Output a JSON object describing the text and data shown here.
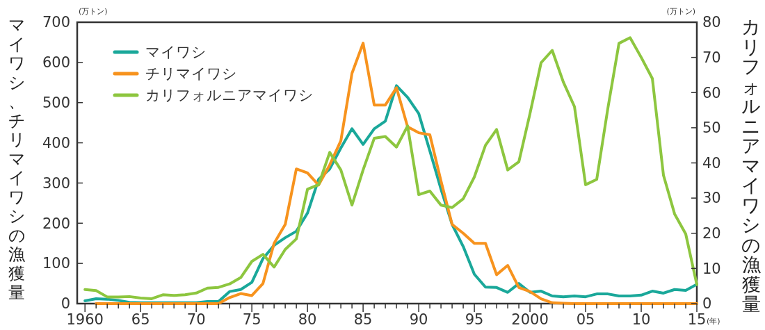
{
  "chart_data": {
    "type": "line",
    "ylabel": "マイワシ、チリマイワシの漁獲量",
    "y2label": "カリフォルニアマイワシの漁獲量",
    "xlabel": "(年)",
    "annotations": [
      "(万トン)",
      "(万トン)"
    ],
    "x": [
      1960,
      1961,
      1962,
      1963,
      1964,
      1965,
      1966,
      1967,
      1968,
      1969,
      1970,
      1971,
      1972,
      1973,
      1974,
      1975,
      1976,
      1977,
      1978,
      1979,
      1980,
      1981,
      1982,
      1983,
      1984,
      1985,
      1986,
      1987,
      1988,
      1989,
      1990,
      1991,
      1992,
      1993,
      1994,
      1995,
      1996,
      1997,
      1998,
      1999,
      2000,
      2001,
      2002,
      2003,
      2004,
      2005,
      2006,
      2007,
      2008,
      2009,
      2010,
      2011,
      2012,
      2013,
      2014,
      2015
    ],
    "series": [
      {
        "name": "マイワシ",
        "color": "#1aa89a",
        "values": [
          7,
          12,
          11,
          8,
          3,
          2,
          2,
          2,
          2,
          2,
          2,
          5,
          5,
          30,
          35,
          53,
          112,
          145,
          164,
          180,
          225,
          309,
          335,
          387,
          435,
          396,
          435,
          454,
          542,
          513,
          473,
          380,
          285,
          197,
          142,
          73,
          41,
          40,
          28,
          50,
          28,
          31,
          19,
          17,
          19,
          17,
          24,
          24,
          19,
          19,
          21,
          31,
          26,
          35,
          33,
          48
        ]
      },
      {
        "name": "チリマイワシ",
        "color": "#f7931e",
        "values": [
          null,
          0,
          0,
          0,
          0,
          0,
          0,
          0,
          0,
          0,
          0,
          0,
          0,
          15,
          25,
          20,
          50,
          150,
          197,
          335,
          325,
          295,
          345,
          405,
          573,
          648,
          494,
          494,
          537,
          440,
          425,
          420,
          305,
          197,
          175,
          150,
          150,
          72,
          95,
          40,
          30,
          12,
          2,
          1,
          0,
          0,
          0,
          0,
          0,
          0,
          0,
          0,
          0,
          0,
          0,
          0
        ]
      },
      {
        "name": "カリフォルニアマイワシ",
        "color": "#8dc63f",
        "axis": "y2",
        "values": [
          4.0,
          3.7,
          1.9,
          1.9,
          2.0,
          1.6,
          1.4,
          2.5,
          2.3,
          2.5,
          3.0,
          4.4,
          4.6,
          5.6,
          7.4,
          12.0,
          14.0,
          10.4,
          15.4,
          18.4,
          32.5,
          33.8,
          43.0,
          38.0,
          28.0,
          38.0,
          47.0,
          47.5,
          44.5,
          50.5,
          31.0,
          32.0,
          28.0,
          27.3,
          29.8,
          36.0,
          45.0,
          49.5,
          38.0,
          40.3,
          54.0,
          68.5,
          72.0,
          63.0,
          56.0,
          33.8,
          35.3,
          55.5,
          74.0,
          75.6,
          70.0,
          64.0,
          36.5,
          25.5,
          19.8,
          5.4
        ]
      }
    ],
    "xlim": [
      1959.3,
      2015
    ],
    "xticks": [
      {
        "value": 1960,
        "label": "1960"
      },
      {
        "value": 1961,
        "label": null
      },
      {
        "value": 1962,
        "label": null
      },
      {
        "value": 1963,
        "label": null
      },
      {
        "value": 1964,
        "label": null
      },
      {
        "value": 1965,
        "label": "65"
      },
      {
        "value": 1966,
        "label": null
      },
      {
        "value": 1967,
        "label": null
      },
      {
        "value": 1968,
        "label": null
      },
      {
        "value": 1969,
        "label": null
      },
      {
        "value": 1970,
        "label": "70"
      },
      {
        "value": 1971,
        "label": null
      },
      {
        "value": 1972,
        "label": null
      },
      {
        "value": 1973,
        "label": null
      },
      {
        "value": 1974,
        "label": null
      },
      {
        "value": 1975,
        "label": "75"
      },
      {
        "value": 1976,
        "label": null
      },
      {
        "value": 1977,
        "label": null
      },
      {
        "value": 1978,
        "label": null
      },
      {
        "value": 1979,
        "label": null
      },
      {
        "value": 1980,
        "label": "80"
      },
      {
        "value": 1981,
        "label": null
      },
      {
        "value": 1982,
        "label": null
      },
      {
        "value": 1983,
        "label": null
      },
      {
        "value": 1984,
        "label": null
      },
      {
        "value": 1985,
        "label": "85"
      },
      {
        "value": 1986,
        "label": null
      },
      {
        "value": 1987,
        "label": null
      },
      {
        "value": 1988,
        "label": null
      },
      {
        "value": 1989,
        "label": null
      },
      {
        "value": 1990,
        "label": "90"
      },
      {
        "value": 1991,
        "label": null
      },
      {
        "value": 1992,
        "label": null
      },
      {
        "value": 1993,
        "label": null
      },
      {
        "value": 1994,
        "label": null
      },
      {
        "value": 1995,
        "label": "95"
      },
      {
        "value": 1996,
        "label": null
      },
      {
        "value": 1997,
        "label": null
      },
      {
        "value": 1998,
        "label": null
      },
      {
        "value": 1999,
        "label": null
      },
      {
        "value": 2000,
        "label": "2000"
      },
      {
        "value": 2001,
        "label": null
      },
      {
        "value": 2002,
        "label": null
      },
      {
        "value": 2003,
        "label": null
      },
      {
        "value": 2004,
        "label": null
      },
      {
        "value": 2005,
        "label": "05"
      },
      {
        "value": 2006,
        "label": null
      },
      {
        "value": 2007,
        "label": null
      },
      {
        "value": 2008,
        "label": null
      },
      {
        "value": 2009,
        "label": null
      },
      {
        "value": 2010,
        "label": "10"
      },
      {
        "value": 2011,
        "label": null
      },
      {
        "value": 2012,
        "label": null
      },
      {
        "value": 2013,
        "label": null
      },
      {
        "value": 2014,
        "label": null
      },
      {
        "value": 2015,
        "label": "15"
      }
    ],
    "ylim": [
      0,
      700
    ],
    "yticks": [
      0,
      100,
      200,
      300,
      400,
      500,
      600,
      700
    ],
    "y2lim": [
      0,
      80
    ],
    "y2ticks": [
      0,
      10,
      20,
      30,
      40,
      50,
      60,
      70,
      80
    ],
    "legend": "top left",
    "grid": false,
    "marker": "none",
    "line_style": "solid"
  }
}
